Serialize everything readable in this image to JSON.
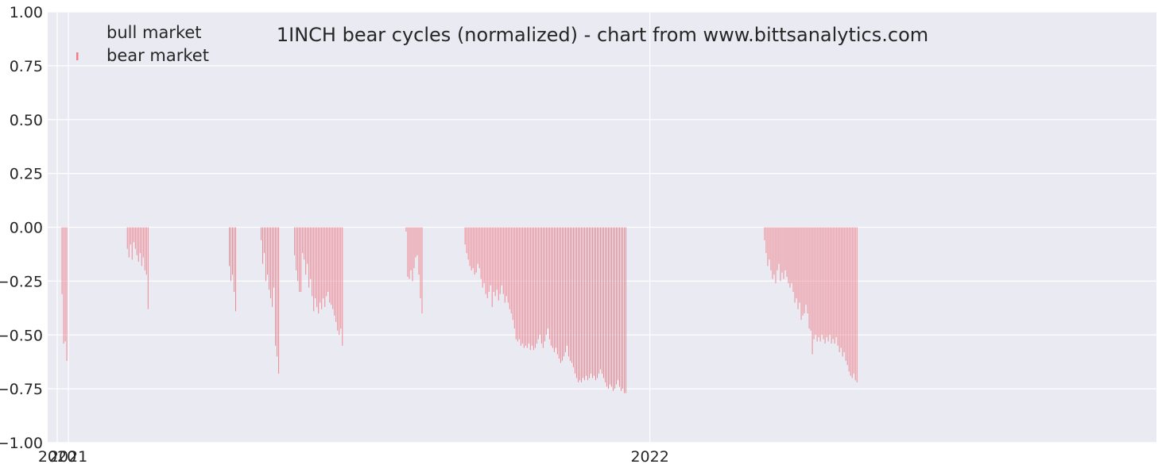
{
  "chart_data": {
    "type": "bar",
    "title": "1INCH bear cycles (normalized)  - chart from www.bittsanalytics.com",
    "xlabel": "",
    "ylabel": "",
    "ylim": [
      -1.0,
      1.0
    ],
    "xlim": [
      "2020-12-19",
      "2022-11-15"
    ],
    "x_ticks": [
      {
        "label": "2020",
        "date": "2020-12-25"
      },
      {
        "label": "2021",
        "date": "2021-01-01"
      },
      {
        "label": "2022",
        "date": "2022-01-01"
      }
    ],
    "y_ticks": [
      "1.00",
      "0.75",
      "0.50",
      "0.25",
      "0.00",
      "−0.25",
      "−0.50",
      "−0.75",
      "−1.00"
    ],
    "y_tick_values": [
      1.0,
      0.75,
      0.5,
      0.25,
      0.0,
      -0.25,
      -0.5,
      -0.75,
      -1.0
    ],
    "grid": true,
    "legend_position": "top-left",
    "legend": [
      "bull market",
      "bear market"
    ],
    "colors": {
      "bear": "#f07d87",
      "background": "#eaeaf2",
      "grid": "#ffffff"
    },
    "series": [
      {
        "name": "bear market",
        "points": [
          [
            "2020-12-28",
            -0.31
          ],
          [
            "2020-12-29",
            -0.54
          ],
          [
            "2020-12-30",
            -0.53
          ],
          [
            "2020-12-31",
            -0.62
          ],
          [
            "2021-02-07",
            -0.1
          ],
          [
            "2021-02-08",
            -0.14
          ],
          [
            "2021-02-09",
            -0.08
          ],
          [
            "2021-02-10",
            -0.15
          ],
          [
            "2021-02-11",
            -0.07
          ],
          [
            "2021-02-12",
            -0.1
          ],
          [
            "2021-02-13",
            -0.13
          ],
          [
            "2021-02-14",
            -0.16
          ],
          [
            "2021-02-15",
            -0.12
          ],
          [
            "2021-02-16",
            -0.18
          ],
          [
            "2021-02-17",
            -0.14
          ],
          [
            "2021-02-18",
            -0.2
          ],
          [
            "2021-02-19",
            -0.22
          ],
          [
            "2021-02-20",
            -0.38
          ],
          [
            "2021-04-12",
            -0.18
          ],
          [
            "2021-04-13",
            -0.25
          ],
          [
            "2021-04-14",
            -0.22
          ],
          [
            "2021-04-15",
            -0.3
          ],
          [
            "2021-04-16",
            -0.39
          ],
          [
            "2021-05-02",
            -0.06
          ],
          [
            "2021-05-03",
            -0.17
          ],
          [
            "2021-05-04",
            -0.12
          ],
          [
            "2021-05-05",
            -0.25
          ],
          [
            "2021-05-06",
            -0.22
          ],
          [
            "2021-05-07",
            -0.29
          ],
          [
            "2021-05-08",
            -0.33
          ],
          [
            "2021-05-09",
            -0.37
          ],
          [
            "2021-05-10",
            -0.28
          ],
          [
            "2021-05-11",
            -0.55
          ],
          [
            "2021-05-12",
            -0.6
          ],
          [
            "2021-05-13",
            -0.68
          ],
          [
            "2021-05-23",
            -0.13
          ],
          [
            "2021-05-24",
            -0.2
          ],
          [
            "2021-05-25",
            -0.25
          ],
          [
            "2021-05-26",
            -0.3
          ],
          [
            "2021-05-27",
            -0.3
          ],
          [
            "2021-05-28",
            -0.12
          ],
          [
            "2021-05-29",
            -0.15
          ],
          [
            "2021-05-30",
            -0.22
          ],
          [
            "2021-05-31",
            -0.17
          ],
          [
            "2021-06-01",
            -0.28
          ],
          [
            "2021-06-02",
            -0.24
          ],
          [
            "2021-06-03",
            -0.32
          ],
          [
            "2021-06-04",
            -0.39
          ],
          [
            "2021-06-05",
            -0.33
          ],
          [
            "2021-06-06",
            -0.37
          ],
          [
            "2021-06-07",
            -0.4
          ],
          [
            "2021-06-08",
            -0.35
          ],
          [
            "2021-06-09",
            -0.38
          ],
          [
            "2021-06-10",
            -0.33
          ],
          [
            "2021-06-11",
            -0.37
          ],
          [
            "2021-06-12",
            -0.32
          ],
          [
            "2021-06-13",
            -0.3
          ],
          [
            "2021-06-14",
            -0.35
          ],
          [
            "2021-06-15",
            -0.36
          ],
          [
            "2021-06-16",
            -0.38
          ],
          [
            "2021-06-17",
            -0.41
          ],
          [
            "2021-06-18",
            -0.44
          ],
          [
            "2021-06-19",
            -0.48
          ],
          [
            "2021-06-20",
            -0.5
          ],
          [
            "2021-06-21",
            -0.47
          ],
          [
            "2021-06-22",
            -0.55
          ],
          [
            "2021-08-01",
            -0.02
          ],
          [
            "2021-08-02",
            -0.23
          ],
          [
            "2021-08-03",
            -0.24
          ],
          [
            "2021-08-04",
            -0.2
          ],
          [
            "2021-08-05",
            -0.25
          ],
          [
            "2021-08-06",
            -0.19
          ],
          [
            "2021-08-07",
            -0.14
          ],
          [
            "2021-08-08",
            -0.13
          ],
          [
            "2021-08-09",
            -0.22
          ],
          [
            "2021-08-10",
            -0.33
          ],
          [
            "2021-08-11",
            -0.4
          ],
          [
            "2021-09-07",
            -0.08
          ],
          [
            "2021-09-08",
            -0.12
          ],
          [
            "2021-09-09",
            -0.15
          ],
          [
            "2021-09-10",
            -0.18
          ],
          [
            "2021-09-11",
            -0.2
          ],
          [
            "2021-09-12",
            -0.19
          ],
          [
            "2021-09-13",
            -0.22
          ],
          [
            "2021-09-14",
            -0.21
          ],
          [
            "2021-09-15",
            -0.17
          ],
          [
            "2021-09-16",
            -0.19
          ],
          [
            "2021-09-17",
            -0.24
          ],
          [
            "2021-09-18",
            -0.28
          ],
          [
            "2021-09-19",
            -0.26
          ],
          [
            "2021-09-20",
            -0.31
          ],
          [
            "2021-09-21",
            -0.33
          ],
          [
            "2021-09-22",
            -0.3
          ],
          [
            "2021-09-23",
            -0.27
          ],
          [
            "2021-09-24",
            -0.37
          ],
          [
            "2021-09-25",
            -0.3
          ],
          [
            "2021-09-26",
            -0.32
          ],
          [
            "2021-09-27",
            -0.29
          ],
          [
            "2021-09-28",
            -0.34
          ],
          [
            "2021-09-29",
            -0.31
          ],
          [
            "2021-09-30",
            -0.27
          ],
          [
            "2021-10-01",
            -0.31
          ],
          [
            "2021-10-02",
            -0.35
          ],
          [
            "2021-10-03",
            -0.32
          ],
          [
            "2021-10-04",
            -0.35
          ],
          [
            "2021-10-05",
            -0.38
          ],
          [
            "2021-10-06",
            -0.4
          ],
          [
            "2021-10-07",
            -0.43
          ],
          [
            "2021-10-08",
            -0.47
          ],
          [
            "2021-10-09",
            -0.52
          ],
          [
            "2021-10-10",
            -0.53
          ],
          [
            "2021-10-11",
            -0.52
          ],
          [
            "2021-10-12",
            -0.55
          ],
          [
            "2021-10-13",
            -0.54
          ],
          [
            "2021-10-14",
            -0.56
          ],
          [
            "2021-10-15",
            -0.55
          ],
          [
            "2021-10-16",
            -0.56
          ],
          [
            "2021-10-17",
            -0.54
          ],
          [
            "2021-10-18",
            -0.57
          ],
          [
            "2021-10-19",
            -0.55
          ],
          [
            "2021-10-20",
            -0.57
          ],
          [
            "2021-10-21",
            -0.56
          ],
          [
            "2021-10-22",
            -0.54
          ],
          [
            "2021-10-23",
            -0.52
          ],
          [
            "2021-10-24",
            -0.5
          ],
          [
            "2021-10-25",
            -0.54
          ],
          [
            "2021-10-26",
            -0.56
          ],
          [
            "2021-10-27",
            -0.53
          ],
          [
            "2021-10-28",
            -0.5
          ],
          [
            "2021-10-29",
            -0.47
          ],
          [
            "2021-10-30",
            -0.52
          ],
          [
            "2021-10-31",
            -0.55
          ],
          [
            "2021-11-01",
            -0.56
          ],
          [
            "2021-11-02",
            -0.58
          ],
          [
            "2021-11-03",
            -0.56
          ],
          [
            "2021-11-04",
            -0.59
          ],
          [
            "2021-11-05",
            -0.61
          ],
          [
            "2021-11-06",
            -0.63
          ],
          [
            "2021-11-07",
            -0.62
          ],
          [
            "2021-11-08",
            -0.6
          ],
          [
            "2021-11-09",
            -0.58
          ],
          [
            "2021-11-10",
            -0.55
          ],
          [
            "2021-11-11",
            -0.6
          ],
          [
            "2021-11-12",
            -0.62
          ],
          [
            "2021-11-13",
            -0.63
          ],
          [
            "2021-11-14",
            -0.65
          ],
          [
            "2021-11-15",
            -0.68
          ],
          [
            "2021-11-16",
            -0.7
          ],
          [
            "2021-11-17",
            -0.72
          ],
          [
            "2021-11-18",
            -0.71
          ],
          [
            "2021-11-19",
            -0.72
          ],
          [
            "2021-11-20",
            -0.7
          ],
          [
            "2021-11-21",
            -0.71
          ],
          [
            "2021-11-22",
            -0.69
          ],
          [
            "2021-11-23",
            -0.71
          ],
          [
            "2021-11-24",
            -0.7
          ],
          [
            "2021-11-25",
            -0.68
          ],
          [
            "2021-11-26",
            -0.7
          ],
          [
            "2021-11-27",
            -0.69
          ],
          [
            "2021-11-28",
            -0.71
          ],
          [
            "2021-11-29",
            -0.7
          ],
          [
            "2021-11-30",
            -0.68
          ],
          [
            "2021-12-01",
            -0.66
          ],
          [
            "2021-12-02",
            -0.68
          ],
          [
            "2021-12-03",
            -0.7
          ],
          [
            "2021-12-04",
            -0.72
          ],
          [
            "2021-12-05",
            -0.74
          ],
          [
            "2021-12-06",
            -0.75
          ],
          [
            "2021-12-07",
            -0.73
          ],
          [
            "2021-12-08",
            -0.74
          ],
          [
            "2021-12-09",
            -0.76
          ],
          [
            "2021-12-10",
            -0.75
          ],
          [
            "2021-12-11",
            -0.73
          ],
          [
            "2021-12-12",
            -0.71
          ],
          [
            "2021-12-13",
            -0.74
          ],
          [
            "2021-12-14",
            -0.76
          ],
          [
            "2021-12-15",
            -0.75
          ],
          [
            "2021-12-16",
            -0.77
          ],
          [
            "2021-12-17",
            -0.77
          ],
          [
            "2022-03-14",
            -0.06
          ],
          [
            "2022-03-15",
            -0.12
          ],
          [
            "2022-03-16",
            -0.18
          ],
          [
            "2022-03-17",
            -0.15
          ],
          [
            "2022-03-18",
            -0.2
          ],
          [
            "2022-03-19",
            -0.24
          ],
          [
            "2022-03-20",
            -0.22
          ],
          [
            "2022-03-21",
            -0.26
          ],
          [
            "2022-03-22",
            -0.2
          ],
          [
            "2022-03-23",
            -0.17
          ],
          [
            "2022-03-24",
            -0.25
          ],
          [
            "2022-03-25",
            -0.21
          ],
          [
            "2022-03-26",
            -0.24
          ],
          [
            "2022-03-27",
            -0.2
          ],
          [
            "2022-03-28",
            -0.23
          ],
          [
            "2022-03-29",
            -0.26
          ],
          [
            "2022-03-30",
            -0.28
          ],
          [
            "2022-03-31",
            -0.26
          ],
          [
            "2022-04-01",
            -0.3
          ],
          [
            "2022-04-02",
            -0.35
          ],
          [
            "2022-04-03",
            -0.33
          ],
          [
            "2022-04-04",
            -0.38
          ],
          [
            "2022-04-05",
            -0.35
          ],
          [
            "2022-04-06",
            -0.43
          ],
          [
            "2022-04-07",
            -0.41
          ],
          [
            "2022-04-08",
            -0.4
          ],
          [
            "2022-04-09",
            -0.36
          ],
          [
            "2022-04-10",
            -0.4
          ],
          [
            "2022-04-11",
            -0.47
          ],
          [
            "2022-04-12",
            -0.48
          ],
          [
            "2022-04-13",
            -0.59
          ],
          [
            "2022-04-14",
            -0.52
          ],
          [
            "2022-04-15",
            -0.5
          ],
          [
            "2022-04-16",
            -0.53
          ],
          [
            "2022-04-17",
            -0.51
          ],
          [
            "2022-04-18",
            -0.53
          ],
          [
            "2022-04-19",
            -0.5
          ],
          [
            "2022-04-20",
            -0.52
          ],
          [
            "2022-04-21",
            -0.54
          ],
          [
            "2022-04-22",
            -0.51
          ],
          [
            "2022-04-23",
            -0.53
          ],
          [
            "2022-04-24",
            -0.5
          ],
          [
            "2022-04-25",
            -0.54
          ],
          [
            "2022-04-26",
            -0.52
          ],
          [
            "2022-04-27",
            -0.54
          ],
          [
            "2022-04-28",
            -0.51
          ],
          [
            "2022-04-29",
            -0.55
          ],
          [
            "2022-04-30",
            -0.58
          ],
          [
            "2022-05-01",
            -0.56
          ],
          [
            "2022-05-02",
            -0.6
          ],
          [
            "2022-05-03",
            -0.58
          ],
          [
            "2022-05-04",
            -0.62
          ],
          [
            "2022-05-05",
            -0.64
          ],
          [
            "2022-05-06",
            -0.67
          ],
          [
            "2022-05-07",
            -0.69
          ],
          [
            "2022-05-08",
            -0.7
          ],
          [
            "2022-05-09",
            -0.68
          ],
          [
            "2022-05-10",
            -0.71
          ],
          [
            "2022-05-11",
            -0.72
          ]
        ]
      }
    ]
  }
}
